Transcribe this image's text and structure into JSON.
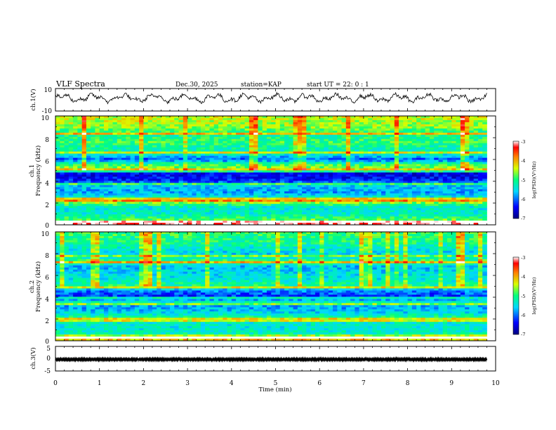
{
  "header": {
    "title": "VLF Spectra",
    "date": "Dec.30, 2025",
    "station": "station=KAP",
    "start_ut": "start UT =  22: 0  : 1"
  },
  "chart_data": [
    {
      "type": "line",
      "panel": "waveform-ch1",
      "ylabel": "ch.1(V)",
      "ylim": [
        -10,
        10
      ],
      "yticks": [
        "10",
        "-10"
      ],
      "x_unit": "min",
      "xlim": [
        0,
        10
      ],
      "data_end_min": 9.8,
      "series": [
        {
          "name": "ch.1",
          "mean_V": 1.5,
          "amplitude_V": 5
        }
      ]
    },
    {
      "type": "heatmap",
      "panel": "spectrogram-ch1",
      "ylabel": "ch.1",
      "ylabel2": "Frequency (kHz)",
      "ylim": [
        0,
        10
      ],
      "yticks": [
        "0",
        "2",
        "4",
        "6",
        "8",
        "10"
      ],
      "xlim": [
        0,
        10
      ],
      "data_end_min": 9.8,
      "colorbar": {
        "label": "log(PSD)(V²/Hz)",
        "range": [
          -7,
          -3
        ],
        "ticks": [
          "-3",
          "-4",
          "-5",
          "-6",
          "-7"
        ]
      },
      "freq_profile_kHz": [
        {
          "f": 0.0,
          "v": -4.6
        },
        {
          "f": 0.2,
          "v": -3.3
        },
        {
          "f": 0.5,
          "v": -4.9
        },
        {
          "f": 1.0,
          "v": -5.3
        },
        {
          "f": 1.6,
          "v": -5.4
        },
        {
          "f": 2.1,
          "v": -4.5
        },
        {
          "f": 2.5,
          "v": -5.3
        },
        {
          "f": 3.0,
          "v": -5.8
        },
        {
          "f": 3.6,
          "v": -5.6
        },
        {
          "f": 4.2,
          "v": -6.4
        },
        {
          "f": 4.8,
          "v": -6.5
        },
        {
          "f": 5.2,
          "v": -4.6
        },
        {
          "f": 5.6,
          "v": -5.0
        },
        {
          "f": 6.0,
          "v": -6.1
        },
        {
          "f": 6.5,
          "v": -5.3
        },
        {
          "f": 7.0,
          "v": -5.2
        },
        {
          "f": 7.6,
          "v": -4.9
        },
        {
          "f": 8.2,
          "v": -5.1
        },
        {
          "f": 9.0,
          "v": -4.6
        },
        {
          "f": 10.0,
          "v": -4.4
        }
      ],
      "narrowband_lines_kHz": [
        0.2,
        2.2,
        2.4,
        3.7,
        4.9,
        5.1,
        6.6,
        8.3
      ]
    },
    {
      "type": "heatmap",
      "panel": "spectrogram-ch2",
      "ylabel": "ch.2",
      "ylabel2": "Frequency (kHz)",
      "ylim": [
        0,
        10
      ],
      "yticks": [
        "0",
        "2",
        "4",
        "6",
        "8",
        "10"
      ],
      "xlim": [
        0,
        10
      ],
      "data_end_min": 9.8,
      "colorbar": {
        "label": "log(PSD)(V²/Hz)",
        "range": [
          -7,
          -3
        ],
        "ticks": [
          "-3",
          "-4",
          "-5",
          "-6",
          "-7"
        ]
      },
      "freq_profile_kHz": [
        {
          "f": 0.0,
          "v": -4.4
        },
        {
          "f": 0.3,
          "v": -3.5
        },
        {
          "f": 0.6,
          "v": -5.2
        },
        {
          "f": 1.2,
          "v": -5.4
        },
        {
          "f": 1.8,
          "v": -5.3
        },
        {
          "f": 2.2,
          "v": -5.1
        },
        {
          "f": 2.6,
          "v": -5.5
        },
        {
          "f": 3.1,
          "v": -5.8
        },
        {
          "f": 3.6,
          "v": -5.3
        },
        {
          "f": 4.0,
          "v": -6.3
        },
        {
          "f": 4.6,
          "v": -5.9
        },
        {
          "f": 5.0,
          "v": -5.0
        },
        {
          "f": 5.6,
          "v": -5.4
        },
        {
          "f": 6.2,
          "v": -5.5
        },
        {
          "f": 6.8,
          "v": -5.7
        },
        {
          "f": 7.3,
          "v": -4.8
        },
        {
          "f": 7.8,
          "v": -5.6
        },
        {
          "f": 8.4,
          "v": -5.4
        },
        {
          "f": 9.0,
          "v": -5.1
        },
        {
          "f": 10.0,
          "v": -4.9
        }
      ],
      "narrowband_lines_kHz": [
        0.3,
        1.8,
        2.0,
        3.4,
        3.9,
        4.9,
        7.2,
        7.8
      ]
    },
    {
      "type": "line",
      "panel": "waveform-ch3",
      "ylabel": "ch.3(V)",
      "ylim": [
        -5,
        5
      ],
      "yticks": [
        "5",
        "0",
        "-5"
      ],
      "xlim": [
        0,
        10
      ],
      "data_end_min": 9.8,
      "series": [
        {
          "name": "ch.3",
          "mean_V": -0.3,
          "amplitude_V": 0.4
        }
      ]
    }
  ],
  "xaxis": {
    "label": "Time  (min)",
    "ticks": [
      "0",
      "1",
      "2",
      "3",
      "4",
      "5",
      "6",
      "7",
      "8",
      "9",
      "10"
    ]
  }
}
